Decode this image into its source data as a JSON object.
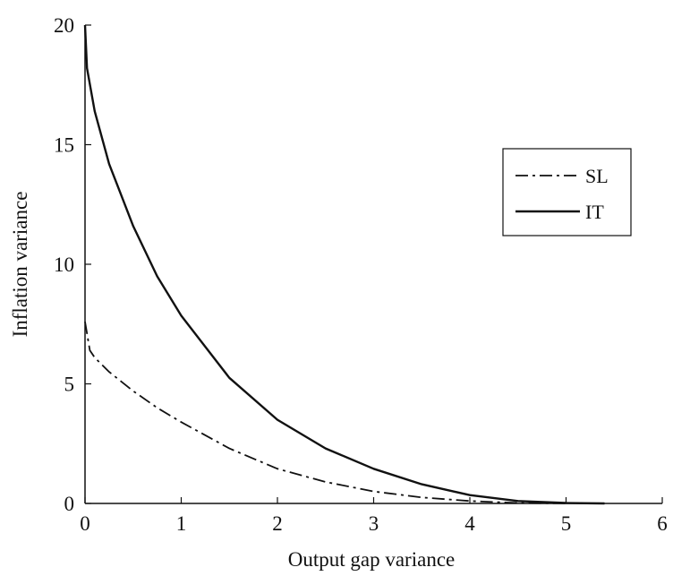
{
  "chart_data": {
    "type": "line",
    "title": "",
    "xlabel": "Output gap variance",
    "ylabel": "Inflation variance",
    "xlim": [
      0,
      6
    ],
    "ylim": [
      0,
      20
    ],
    "xticks": [
      "0",
      "1",
      "2",
      "3",
      "4",
      "5",
      "6"
    ],
    "yticks": [
      "0",
      "5",
      "10",
      "15",
      "20"
    ],
    "grid": false,
    "legend_position": "right",
    "series": [
      {
        "name": "SL",
        "style": "dash-dot",
        "color": "#111111",
        "x": [
          0,
          0.05,
          0.1,
          0.25,
          0.5,
          0.75,
          1.0,
          1.5,
          2.0,
          2.5,
          3.0,
          3.5,
          4.0,
          4.5,
          5.0
        ],
        "y": [
          7.6,
          6.4,
          6.1,
          5.5,
          4.7,
          4.0,
          3.4,
          2.3,
          1.45,
          0.9,
          0.5,
          0.25,
          0.1,
          0.02,
          0.0
        ]
      },
      {
        "name": "IT",
        "style": "solid",
        "color": "#111111",
        "x": [
          0,
          0.02,
          0.1,
          0.25,
          0.5,
          0.75,
          1.0,
          1.5,
          2.0,
          2.5,
          3.0,
          3.5,
          4.0,
          4.5,
          5.0,
          5.4
        ],
        "y": [
          20.0,
          18.2,
          16.4,
          14.2,
          11.6,
          9.5,
          7.85,
          5.25,
          3.5,
          2.3,
          1.45,
          0.8,
          0.35,
          0.1,
          0.02,
          0.0
        ]
      }
    ]
  }
}
